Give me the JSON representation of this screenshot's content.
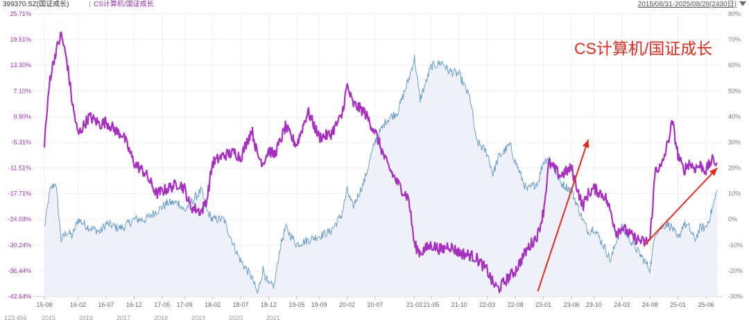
{
  "header": {
    "main_label": "399370.SZ(国证成长)",
    "separator_1": "|",
    "ratio_label": "CS计算机/国证成长",
    "separator_2": "|",
    "date_range": "2015/08/31-2025/08/29(2430日)"
  },
  "colors": {
    "ratio_line": "#a62fc0",
    "index_line": "#6a9cc9",
    "index_fill": "#eef2f8",
    "annotation": "#e8281c",
    "left_axis_text": "#9b30b9",
    "right_axis_text": "#7a7a7a",
    "grid": "#eeeeee"
  },
  "chart_data": {
    "type": "line",
    "annotation_text": "CS计算机/国证成长",
    "left_axis": {
      "ticks": [
        "25.71%",
        "19.51%",
        "13.30%",
        "7.10%",
        "0.90%",
        "-5.31%",
        "-11.51%",
        "-17.71%",
        "-24.03%",
        "-30.24%",
        "-36.44%",
        "-42.64%"
      ],
      "range": [
        -42.64,
        25.71
      ]
    },
    "right_axis": {
      "ticks": [
        "80%",
        "70%",
        "60%",
        "50%",
        "40%",
        "30%",
        "20%",
        "10%",
        "0%",
        "-10%",
        "-20%",
        "-30%"
      ],
      "range": [
        -30,
        80
      ]
    },
    "x_ticks": [
      "15-08",
      "16-02",
      "16-07",
      "16-12",
      "17-05",
      "17-09",
      "18-02",
      "18-07",
      "18-12",
      "19-05",
      "19-09",
      "20-02",
      "20-07",
      "21-02",
      "21-05",
      "21-10",
      "22-03",
      "22-08",
      "23-01",
      "23-06",
      "23-10",
      "24-03",
      "24-08",
      "25-01",
      "25-06"
    ],
    "series": [
      {
        "name": "399370.SZ(国证成长)",
        "axis": "left",
        "points": [
          [
            "15-08",
            -26
          ],
          [
            "15-09",
            -17
          ],
          [
            "15-10",
            -15
          ],
          [
            "15-11",
            -29
          ],
          [
            "15-12",
            -27
          ],
          [
            "16-01",
            -28
          ],
          [
            "16-02",
            -24
          ],
          [
            "16-04",
            -26
          ],
          [
            "16-06",
            -27
          ],
          [
            "16-07",
            -25
          ],
          [
            "16-09",
            -26
          ],
          [
            "16-10",
            -26
          ],
          [
            "16-12",
            -24
          ],
          [
            "17-02",
            -24
          ],
          [
            "17-04",
            -22
          ],
          [
            "17-06",
            -20
          ],
          [
            "17-08",
            -20
          ],
          [
            "17-09",
            -22
          ],
          [
            "17-10",
            -20
          ],
          [
            "17-12",
            -17
          ],
          [
            "18-01",
            -22
          ],
          [
            "18-02",
            -24
          ],
          [
            "18-04",
            -24
          ],
          [
            "18-06",
            -31
          ],
          [
            "18-07",
            -34
          ],
          [
            "18-09",
            -38
          ],
          [
            "18-10",
            -42
          ],
          [
            "18-11",
            -36
          ],
          [
            "18-12",
            -40
          ],
          [
            "19-01",
            -40
          ],
          [
            "19-02",
            -31
          ],
          [
            "19-03",
            -26
          ],
          [
            "19-04",
            -28
          ],
          [
            "19-05",
            -30
          ],
          [
            "19-07",
            -29
          ],
          [
            "19-09",
            -28
          ],
          [
            "19-11",
            -27
          ],
          [
            "20-01",
            -23
          ],
          [
            "20-02",
            -17
          ],
          [
            "20-03",
            -21
          ],
          [
            "20-05",
            -15
          ],
          [
            "20-07",
            -5
          ],
          [
            "20-09",
            0
          ],
          [
            "20-11",
            2
          ],
          [
            "21-01",
            10
          ],
          [
            "21-02",
            15
          ],
          [
            "21-03",
            5
          ],
          [
            "21-05",
            13
          ],
          [
            "21-07",
            14
          ],
          [
            "21-08",
            12
          ],
          [
            "21-10",
            11
          ],
          [
            "21-12",
            5
          ],
          [
            "22-01",
            -5
          ],
          [
            "22-03",
            -8
          ],
          [
            "22-04",
            -13
          ],
          [
            "22-05",
            -9
          ],
          [
            "22-07",
            -6
          ],
          [
            "22-08",
            -10
          ],
          [
            "22-10",
            -17
          ],
          [
            "22-12",
            -15
          ],
          [
            "23-01",
            -10
          ],
          [
            "23-02",
            -9
          ],
          [
            "23-04",
            -15
          ],
          [
            "23-06",
            -17
          ],
          [
            "23-08",
            -24
          ],
          [
            "23-09",
            -27
          ],
          [
            "23-10",
            -26
          ],
          [
            "23-12",
            -31
          ],
          [
            "24-01",
            -34
          ],
          [
            "24-02",
            -29
          ],
          [
            "24-03",
            -26
          ],
          [
            "24-05",
            -30
          ],
          [
            "24-07",
            -34
          ],
          [
            "24-08",
            -36
          ],
          [
            "24-09",
            -27
          ],
          [
            "24-10",
            -26
          ],
          [
            "24-11",
            -25
          ],
          [
            "24-12",
            -26
          ],
          [
            "25-01",
            -29
          ],
          [
            "25-02",
            -25
          ],
          [
            "25-03",
            -26
          ],
          [
            "25-04",
            -29
          ],
          [
            "25-05",
            -26
          ],
          [
            "25-06",
            -26
          ],
          [
            "25-07",
            -22
          ],
          [
            "25-08",
            -17
          ]
        ]
      },
      {
        "name": "CS计算机/国证成长",
        "axis": "right",
        "points": [
          [
            "15-08",
            30
          ],
          [
            "15-09",
            55
          ],
          [
            "15-10",
            65
          ],
          [
            "15-11",
            72
          ],
          [
            "15-12",
            62
          ],
          [
            "16-01",
            45
          ],
          [
            "16-02",
            33
          ],
          [
            "16-04",
            40
          ],
          [
            "16-06",
            37
          ],
          [
            "16-07",
            38
          ],
          [
            "16-09",
            34
          ],
          [
            "16-10",
            33
          ],
          [
            "16-12",
            22
          ],
          [
            "17-02",
            18
          ],
          [
            "17-04",
            10
          ],
          [
            "17-06",
            12
          ],
          [
            "17-08",
            14
          ],
          [
            "17-09",
            12
          ],
          [
            "17-10",
            5
          ],
          [
            "17-12",
            3
          ],
          [
            "18-01",
            8
          ],
          [
            "18-02",
            22
          ],
          [
            "18-04",
            25
          ],
          [
            "18-06",
            26
          ],
          [
            "18-07",
            24
          ],
          [
            "18-09",
            35
          ],
          [
            "18-10",
            25
          ],
          [
            "18-11",
            22
          ],
          [
            "18-12",
            27
          ],
          [
            "19-01",
            25
          ],
          [
            "19-02",
            30
          ],
          [
            "19-03",
            36
          ],
          [
            "19-04",
            32
          ],
          [
            "19-05",
            29
          ],
          [
            "19-07",
            42
          ],
          [
            "19-09",
            32
          ],
          [
            "19-11",
            33
          ],
          [
            "20-01",
            40
          ],
          [
            "20-02",
            52
          ],
          [
            "20-03",
            45
          ],
          [
            "20-05",
            42
          ],
          [
            "20-07",
            34
          ],
          [
            "20-09",
            22
          ],
          [
            "20-11",
            14
          ],
          [
            "21-01",
            8
          ],
          [
            "21-02",
            -10
          ],
          [
            "21-03",
            -13
          ],
          [
            "21-05",
            -10
          ],
          [
            "21-07",
            -12
          ],
          [
            "21-08",
            -10
          ],
          [
            "21-10",
            -13
          ],
          [
            "21-12",
            -14
          ],
          [
            "22-01",
            -15
          ],
          [
            "22-03",
            -20
          ],
          [
            "22-04",
            -25
          ],
          [
            "22-05",
            -27
          ],
          [
            "22-07",
            -22
          ],
          [
            "22-08",
            -20
          ],
          [
            "22-10",
            -12
          ],
          [
            "22-12",
            -6
          ],
          [
            "23-01",
            3
          ],
          [
            "23-02",
            22
          ],
          [
            "23-04",
            17
          ],
          [
            "23-06",
            20
          ],
          [
            "23-08",
            5
          ],
          [
            "23-09",
            10
          ],
          [
            "23-10",
            12
          ],
          [
            "23-12",
            9
          ],
          [
            "24-01",
            3
          ],
          [
            "24-02",
            -5
          ],
          [
            "24-03",
            -3
          ],
          [
            "24-05",
            -7
          ],
          [
            "24-07",
            -9
          ],
          [
            "24-08",
            -8
          ],
          [
            "24-09",
            20
          ],
          [
            "24-10",
            20
          ],
          [
            "24-11",
            28
          ],
          [
            "24-12",
            38
          ],
          [
            "25-01",
            25
          ],
          [
            "25-02",
            19
          ],
          [
            "25-03",
            22
          ],
          [
            "25-04",
            20
          ],
          [
            "25-05",
            21
          ],
          [
            "25-06",
            19
          ],
          [
            "25-07",
            23
          ],
          [
            "25-08",
            22
          ]
        ]
      }
    ],
    "arrows": [
      {
        "from": [
          "22-12",
          -28
        ],
        "to": [
          "23-09",
          31
        ]
      },
      {
        "from": [
          "24-07",
          -10
        ],
        "to": [
          "25-08",
          20
        ]
      }
    ],
    "grid": true
  },
  "bottom_strip": {
    "items": [
      "123.456",
      "2015",
      "2016",
      "2017",
      "2018",
      "2019",
      "2020",
      "2021"
    ]
  }
}
